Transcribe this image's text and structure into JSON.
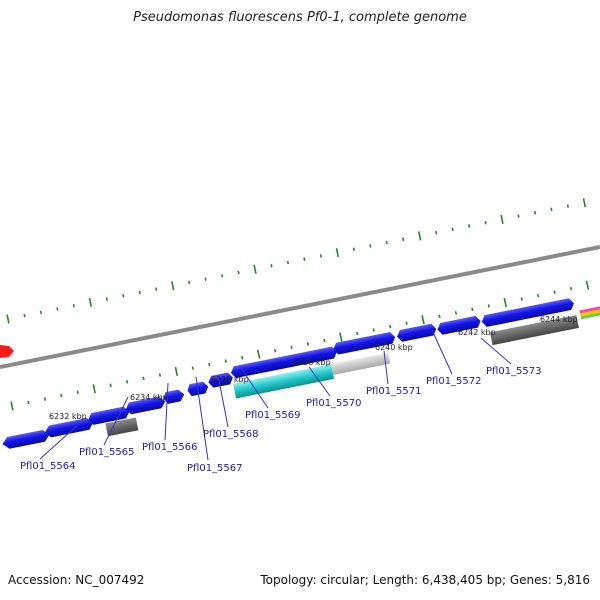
{
  "title": "Pseudomonas fluorescens Pf0-1, complete genome",
  "footer": {
    "accession": "Accession: NC_007492",
    "topology": "Topology: circular; Length: 6,438,405 bp; Genes: 5,816"
  },
  "position_labels": [
    "6232 kbp",
    "6234 kbp",
    "6236 kbp",
    "6238 kbp",
    "6240 kbp",
    "6242 kbp",
    "6244 kbp"
  ],
  "gene_labels": [
    "Pfl01_5564",
    "Pfl01_5565",
    "Pfl01_5566",
    "Pfl01_5567",
    "Pfl01_5568",
    "Pfl01_5569",
    "Pfl01_5570",
    "Pfl01_5571",
    "Pfl01_5572",
    "Pfl01_5573"
  ],
  "colors": {
    "gene_forward": "#1414e6",
    "gene_highlight": "#22c8c8",
    "gene_gray": "#bdbdbd",
    "gene_dark": "#5a5a5a",
    "backbone": "#8a8a8a",
    "tick": "#1e8c1e",
    "marker": "#ff1a1a"
  }
}
